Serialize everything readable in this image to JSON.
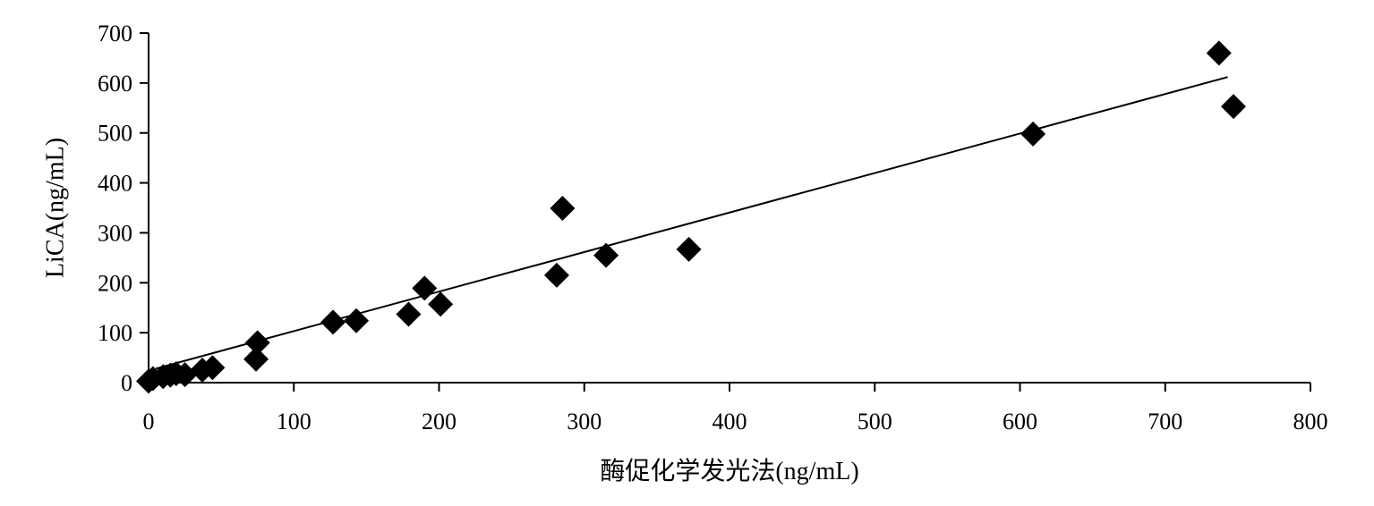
{
  "chart_data": {
    "type": "scatter",
    "title": "",
    "xlabel": "酶促化学发光法(ng/mL)",
    "ylabel": "LiCA(ng/mL)",
    "xlim": [
      0,
      800
    ],
    "ylim": [
      0,
      700
    ],
    "x_ticks": [
      "0",
      "100",
      "200",
      "300",
      "400",
      "500",
      "600",
      "700",
      "800"
    ],
    "y_ticks": [
      "0",
      "100",
      "200",
      "300",
      "400",
      "500",
      "600",
      "700"
    ],
    "x_tick_values": [
      0,
      100,
      200,
      300,
      400,
      500,
      600,
      700,
      800
    ],
    "y_tick_values": [
      0,
      100,
      200,
      300,
      400,
      500,
      600,
      700
    ],
    "grid": false,
    "marker": "diamond",
    "series": [
      {
        "points": [
          {
            "x": 0,
            "y": 3
          },
          {
            "x": 3,
            "y": 8
          },
          {
            "x": 10,
            "y": 12
          },
          {
            "x": 15,
            "y": 15
          },
          {
            "x": 19,
            "y": 18
          },
          {
            "x": 25,
            "y": 16
          },
          {
            "x": 37,
            "y": 25
          },
          {
            "x": 44,
            "y": 30
          },
          {
            "x": 74,
            "y": 47
          },
          {
            "x": 75,
            "y": 80
          },
          {
            "x": 127,
            "y": 121
          },
          {
            "x": 143,
            "y": 124
          },
          {
            "x": 179,
            "y": 137
          },
          {
            "x": 190,
            "y": 189
          },
          {
            "x": 201,
            "y": 157
          },
          {
            "x": 281,
            "y": 215
          },
          {
            "x": 285,
            "y": 349
          },
          {
            "x": 315,
            "y": 255
          },
          {
            "x": 372,
            "y": 267
          },
          {
            "x": 609,
            "y": 498
          },
          {
            "x": 737,
            "y": 660
          },
          {
            "x": 747,
            "y": 553
          }
        ]
      }
    ],
    "trendline": {
      "x": [
        5,
        743
      ],
      "y": [
        28,
        612
      ]
    }
  }
}
